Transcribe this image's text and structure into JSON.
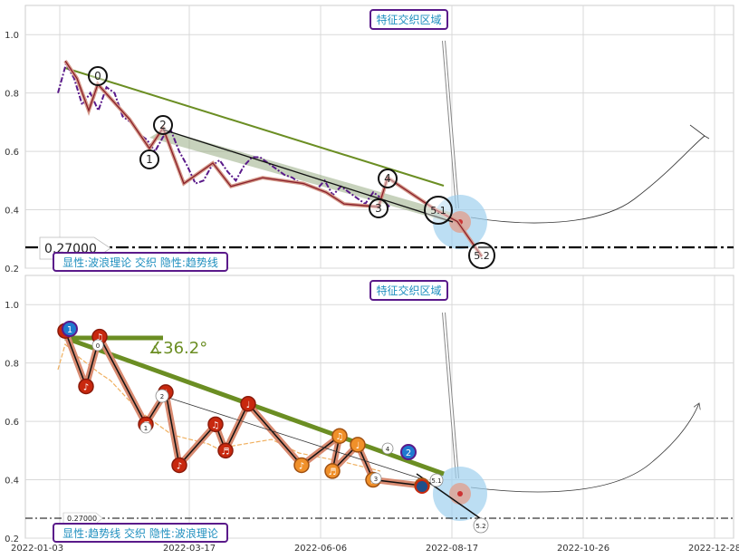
{
  "chart_data": [
    {
      "type": "line",
      "panel": "top",
      "ylim": [
        0.2,
        1.1
      ],
      "y_ticks": [
        "0.2",
        "0.4",
        "0.6",
        "0.8",
        "1.0"
      ],
      "grid": true,
      "title_box": "特征交织区域",
      "legend_box": "显性:波浪理论 交织 隐性:趋势线",
      "threshold": {
        "value": 0.27,
        "label": "0.27000"
      },
      "wave_labels": [
        "0",
        "1",
        "2",
        "3",
        "4",
        "5.1",
        "5.2"
      ],
      "series": [
        {
          "values": [
            0.8,
            0.9,
            0.85,
            0.76,
            0.8,
            0.74,
            0.82,
            0.8,
            0.72,
            0.7,
            0.66,
            0.64,
            0.6,
            0.65,
            0.67,
            0.6,
            0.55,
            0.49,
            0.5,
            0.55,
            0.57,
            0.53,
            0.5,
            0.55,
            0.58,
            0.58,
            0.56,
            0.54,
            0.52,
            0.51,
            0.49,
            0.48,
            0.47,
            0.5,
            0.45,
            0.48,
            0.46,
            0.44,
            0.42,
            0.46,
            0.44,
            0.41
          ]
        },
        {
          "values": [
            0.91,
            0.85,
            0.74,
            0.83,
            0.71,
            0.61,
            0.68,
            0.49,
            0.56,
            0.48,
            0.51,
            0.49,
            0.46,
            0.42,
            0.41,
            0.51,
            0.4,
            0.36,
            0.24
          ]
        }
      ],
      "pivots": [
        {
          "label": "0",
          "value": 0.83
        },
        {
          "label": "1",
          "value": 0.61
        },
        {
          "label": "2",
          "value": 0.68
        },
        {
          "label": "3",
          "value": 0.41
        },
        {
          "label": "4",
          "value": 0.51
        },
        {
          "label": "5.1",
          "value": 0.4
        },
        {
          "label": "5.2",
          "value": 0.24
        }
      ]
    },
    {
      "type": "line",
      "panel": "bottom",
      "ylim": [
        0.2,
        1.1
      ],
      "y_ticks": [
        "0.2",
        "0.4",
        "0.6",
        "0.8",
        "1.0"
      ],
      "x_ticks": [
        "2022-01-03",
        "2022-03-17",
        "2022-06-06",
        "2022-08-17",
        "2022-10-26",
        "2022-12-28"
      ],
      "grid": true,
      "title_box": "特征交织区域",
      "legend_box": "显性:趋势线 交织 隐性:波浪理论",
      "threshold": {
        "value": 0.27,
        "label": "0.27000"
      },
      "angle_label": "∡36.2°",
      "badges": [
        "1",
        "2"
      ],
      "wave_labels": [
        "0",
        "1",
        "2",
        "3",
        "4",
        "5.1",
        "5.2"
      ],
      "series": [
        {
          "values": [
            0.91,
            0.72,
            0.89,
            0.59,
            0.7,
            0.45,
            0.59,
            0.5,
            0.66,
            0.45,
            0.55,
            0.43,
            0.52,
            0.4,
            0.38
          ]
        }
      ],
      "notes": [
        "♩",
        "♪",
        "♫",
        "♬"
      ]
    }
  ]
}
